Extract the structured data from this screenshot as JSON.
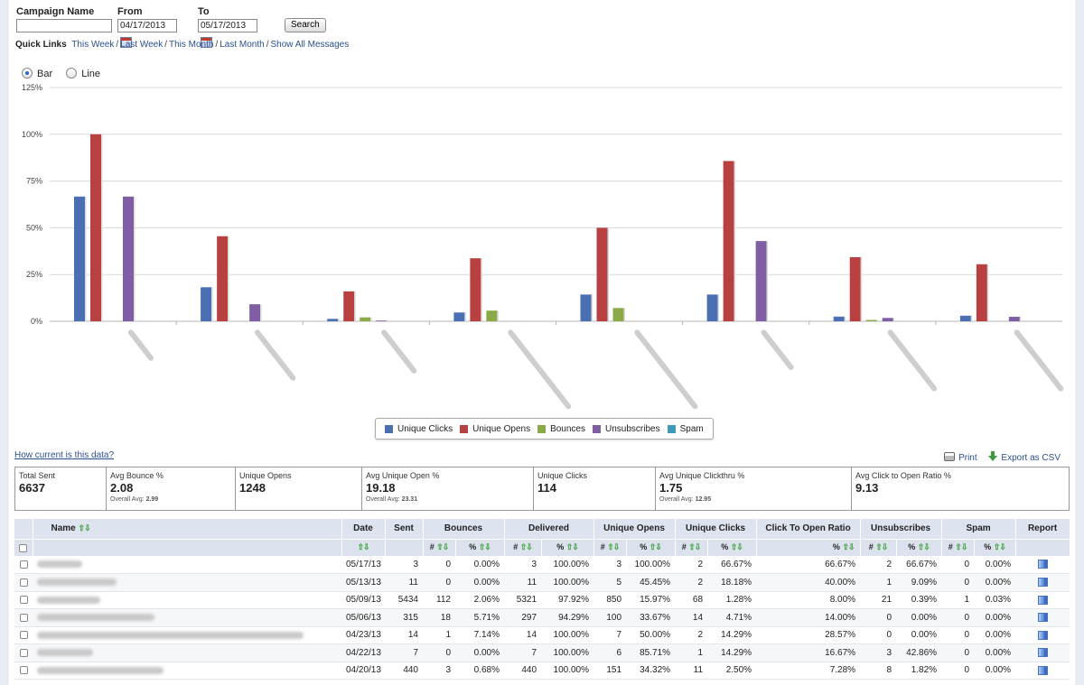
{
  "filter": {
    "campaign_label": "Campaign Name",
    "campaign_value": "",
    "from_label": "From",
    "from_value": "04/17/2013",
    "to_label": "To",
    "to_value": "05/17/2013",
    "search_label": "Search"
  },
  "quick_links": {
    "label": "Quick Links",
    "items": [
      "This Week",
      "Last Week",
      "This Month",
      "Last Month",
      "Show All Messages"
    ]
  },
  "chart_type": {
    "bar_label": "Bar",
    "line_label": "Line",
    "selected": "Bar"
  },
  "chart_data": {
    "type": "bar",
    "categories": [
      "",
      "",
      "",
      "",
      "",
      "",
      "",
      ""
    ],
    "ylim": [
      0,
      125
    ],
    "yticks": [
      "0%",
      "25%",
      "50%",
      "75%",
      "100%",
      "125%"
    ],
    "legend": "bottom",
    "series": [
      {
        "name": "Unique Clicks",
        "color": "#4a6fb2",
        "values": [
          66.7,
          18.2,
          1.3,
          4.7,
          14.3,
          14.3,
          2.5,
          3.0
        ]
      },
      {
        "name": "Unique Opens",
        "color": "#b84040",
        "values": [
          100,
          45.5,
          16.0,
          33.7,
          50.0,
          85.7,
          34.3,
          30.5
        ]
      },
      {
        "name": "Bounces",
        "color": "#8aaa48",
        "values": [
          0,
          0,
          2.1,
          5.7,
          7.1,
          0,
          0.7,
          0
        ]
      },
      {
        "name": "Unsubscribes",
        "color": "#7f5ea4",
        "values": [
          66.7,
          9.1,
          0.4,
          0,
          0,
          42.9,
          1.8,
          2.4
        ]
      },
      {
        "name": "Spam",
        "color": "#3e9ab9",
        "values": [
          0,
          0,
          0,
          0,
          0,
          0,
          0,
          0
        ]
      }
    ]
  },
  "links": {
    "how_current": "How current is this data?",
    "print": "Print",
    "export": "Export as CSV"
  },
  "stats": [
    {
      "label": "Total Sent",
      "value": "6637",
      "sub_label": "",
      "sub_value": ""
    },
    {
      "label": "Avg Bounce %",
      "value": "2.08",
      "sub_label": "Overall Avg:",
      "sub_value": "2.99"
    },
    {
      "label": "Unique Opens",
      "value": "1248",
      "sub_label": "",
      "sub_value": ""
    },
    {
      "label": "Avg Unique Open %",
      "value": "19.18",
      "sub_label": "Overall Avg:",
      "sub_value": "23.31"
    },
    {
      "label": "Unique Clicks",
      "value": "114",
      "sub_label": "",
      "sub_value": ""
    },
    {
      "label": "Avg Unique Clickthru %",
      "value": "1.75",
      "sub_label": "Overall Avg:",
      "sub_value": "12.95"
    },
    {
      "label": "Avg Click to Open Ratio %",
      "value": "9.13",
      "sub_label": "",
      "sub_value": ""
    }
  ],
  "table": {
    "headers": [
      "Name",
      "Date",
      "Sent",
      "Bounces",
      "Delivered",
      "Unique Opens",
      "Unique Clicks",
      "Click To Open Ratio",
      "Unsubscribes",
      "Spam",
      "Report"
    ],
    "sub_headers": {
      "num": "#",
      "pct": "%"
    },
    "rows": [
      {
        "date": "05/17/13",
        "sent": "3",
        "b_n": "0",
        "b_p": "0.00%",
        "d_n": "3",
        "d_p": "100.00%",
        "o_n": "3",
        "o_p": "100.00%",
        "c_n": "2",
        "c_p": "66.67%",
        "ctor": "66.67%",
        "u_n": "2",
        "u_p": "66.67%",
        "s_n": "0",
        "s_p": "0.00%"
      },
      {
        "date": "05/13/13",
        "sent": "11",
        "b_n": "0",
        "b_p": "0.00%",
        "d_n": "11",
        "d_p": "100.00%",
        "o_n": "5",
        "o_p": "45.45%",
        "c_n": "2",
        "c_p": "18.18%",
        "ctor": "40.00%",
        "u_n": "1",
        "u_p": "9.09%",
        "s_n": "0",
        "s_p": "0.00%"
      },
      {
        "date": "05/09/13",
        "sent": "5434",
        "b_n": "112",
        "b_p": "2.06%",
        "d_n": "5321",
        "d_p": "97.92%",
        "o_n": "850",
        "o_p": "15.97%",
        "c_n": "68",
        "c_p": "1.28%",
        "ctor": "8.00%",
        "u_n": "21",
        "u_p": "0.39%",
        "s_n": "1",
        "s_p": "0.03%"
      },
      {
        "date": "05/06/13",
        "sent": "315",
        "b_n": "18",
        "b_p": "5.71%",
        "d_n": "297",
        "d_p": "94.29%",
        "o_n": "100",
        "o_p": "33.67%",
        "c_n": "14",
        "c_p": "4.71%",
        "ctor": "14.00%",
        "u_n": "0",
        "u_p": "0.00%",
        "s_n": "0",
        "s_p": "0.00%"
      },
      {
        "date": "04/23/13",
        "sent": "14",
        "b_n": "1",
        "b_p": "7.14%",
        "d_n": "14",
        "d_p": "100.00%",
        "o_n": "7",
        "o_p": "50.00%",
        "c_n": "2",
        "c_p": "14.29%",
        "ctor": "28.57%",
        "u_n": "0",
        "u_p": "0.00%",
        "s_n": "0",
        "s_p": "0.00%"
      },
      {
        "date": "04/22/13",
        "sent": "7",
        "b_n": "0",
        "b_p": "0.00%",
        "d_n": "7",
        "d_p": "100.00%",
        "o_n": "6",
        "o_p": "85.71%",
        "c_n": "1",
        "c_p": "14.29%",
        "ctor": "16.67%",
        "u_n": "3",
        "u_p": "42.86%",
        "s_n": "0",
        "s_p": "0.00%"
      },
      {
        "date": "04/20/13",
        "sent": "440",
        "b_n": "3",
        "b_p": "0.68%",
        "d_n": "440",
        "d_p": "100.00%",
        "o_n": "151",
        "o_p": "34.32%",
        "c_n": "11",
        "c_p": "2.50%",
        "ctor": "7.28%",
        "u_n": "8",
        "u_p": "1.82%",
        "s_n": "0",
        "s_p": "0.00%"
      }
    ]
  }
}
